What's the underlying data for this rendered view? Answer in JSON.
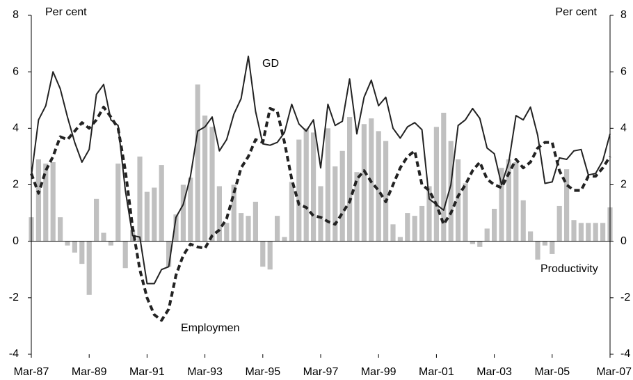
{
  "chart_data": {
    "type": "bar-line",
    "y_label_left": "Per cent",
    "y_label_right": "Per cent",
    "categories": [
      "Mar-87",
      null,
      null,
      null,
      null,
      null,
      null,
      null,
      "Mar-89",
      null,
      null,
      null,
      null,
      null,
      null,
      null,
      "Mar-91",
      null,
      null,
      null,
      null,
      null,
      null,
      null,
      "Mar-93",
      null,
      null,
      null,
      null,
      null,
      null,
      null,
      "Mar-95",
      null,
      null,
      null,
      null,
      null,
      null,
      null,
      "Mar-97",
      null,
      null,
      null,
      null,
      null,
      null,
      null,
      "Mar-99",
      null,
      null,
      null,
      null,
      null,
      null,
      null,
      "Mar-01",
      null,
      null,
      null,
      null,
      null,
      null,
      null,
      "Mar-03",
      null,
      null,
      null,
      null,
      null,
      null,
      null,
      "Mar-05",
      null,
      null,
      null,
      null,
      null,
      null,
      null,
      "Mar-07"
    ],
    "series": [
      {
        "name": "Productivity",
        "kind": "bar",
        "color": "#c0c0c0",
        "values": [
          0.85,
          2.9,
          2.75,
          2.8,
          0.85,
          -0.15,
          -0.4,
          -0.8,
          -1.9,
          1.5,
          0.3,
          -0.15,
          2.75,
          -0.95,
          0.4,
          3.0,
          1.75,
          1.9,
          2.7,
          -0.9,
          0.95,
          2.0,
          2.25,
          5.55,
          4.45,
          4.05,
          1.95,
          0.65,
          2.0,
          1.0,
          0.9,
          1.4,
          -0.9,
          -1.0,
          0.9,
          0.15,
          2.1,
          3.6,
          4.0,
          3.85,
          1.95,
          4.0,
          2.65,
          3.2,
          4.4,
          2.45,
          4.15,
          4.35,
          3.9,
          3.55,
          0.6,
          0.15,
          1.0,
          0.9,
          1.25,
          1.95,
          4.05,
          4.55,
          3.55,
          2.9,
          2.05,
          -0.1,
          -0.2,
          0.45,
          1.15,
          2.6,
          2.9,
          2.8,
          1.45,
          0.35,
          -0.65,
          -0.15,
          -0.45,
          1.25,
          2.55,
          0.75,
          0.65,
          0.65,
          0.65,
          0.65,
          1.2
        ]
      },
      {
        "name": "GD",
        "kind": "line",
        "color": "#222222",
        "values": [
          2.3,
          4.3,
          4.8,
          6.0,
          5.4,
          4.4,
          3.5,
          2.8,
          3.25,
          5.2,
          5.55,
          4.3,
          4.1,
          1.8,
          0.2,
          0.15,
          -1.5,
          -1.5,
          -1.0,
          -0.9,
          0.85,
          1.3,
          2.3,
          3.9,
          4.05,
          4.4,
          3.2,
          3.6,
          4.5,
          5.05,
          6.55,
          4.6,
          3.45,
          3.4,
          3.5,
          3.85,
          4.85,
          4.15,
          3.9,
          4.3,
          2.6,
          4.85,
          4.1,
          4.25,
          5.75,
          3.8,
          5.1,
          5.7,
          4.8,
          5.1,
          4.0,
          3.65,
          4.05,
          4.2,
          3.95,
          1.5,
          1.3,
          1.1,
          2.0,
          4.1,
          4.3,
          4.7,
          4.35,
          3.3,
          3.1,
          2.0,
          2.8,
          4.45,
          4.3,
          4.75,
          3.75,
          2.05,
          2.1,
          2.95,
          2.9,
          3.2,
          3.25,
          2.35,
          2.4,
          2.85,
          3.8
        ]
      },
      {
        "name": "Employmen",
        "kind": "dashed",
        "color": "#222222",
        "values": [
          2.4,
          1.7,
          2.5,
          3.0,
          3.7,
          3.6,
          3.9,
          4.2,
          4.0,
          4.3,
          4.75,
          4.4,
          4.0,
          2.5,
          0.5,
          -1.0,
          -2.0,
          -2.6,
          -2.8,
          -2.4,
          -1.2,
          -0.5,
          -0.1,
          -0.2,
          -0.25,
          0.2,
          0.4,
          0.8,
          1.7,
          2.6,
          3.0,
          3.6,
          3.5,
          4.7,
          4.6,
          3.5,
          2.2,
          1.3,
          1.2,
          0.9,
          0.85,
          0.7,
          0.6,
          1.0,
          1.4,
          2.2,
          2.5,
          2.1,
          1.8,
          1.4,
          2.0,
          2.6,
          3.0,
          3.2,
          2.0,
          1.8,
          1.3,
          0.6,
          1.0,
          1.6,
          2.0,
          2.5,
          2.8,
          2.2,
          2.0,
          1.9,
          2.4,
          2.9,
          2.6,
          2.8,
          3.3,
          3.5,
          3.5,
          2.5,
          2.0,
          1.8,
          1.8,
          2.3,
          2.3,
          2.6,
          3.0
        ]
      }
    ],
    "ylim": [
      -4,
      8
    ],
    "yticks": [
      -4,
      -2,
      0,
      2,
      4,
      6,
      8
    ],
    "y2lim": [
      -4,
      8
    ],
    "y2ticks": [
      -4,
      -2,
      0,
      2,
      4,
      6,
      8
    ]
  }
}
